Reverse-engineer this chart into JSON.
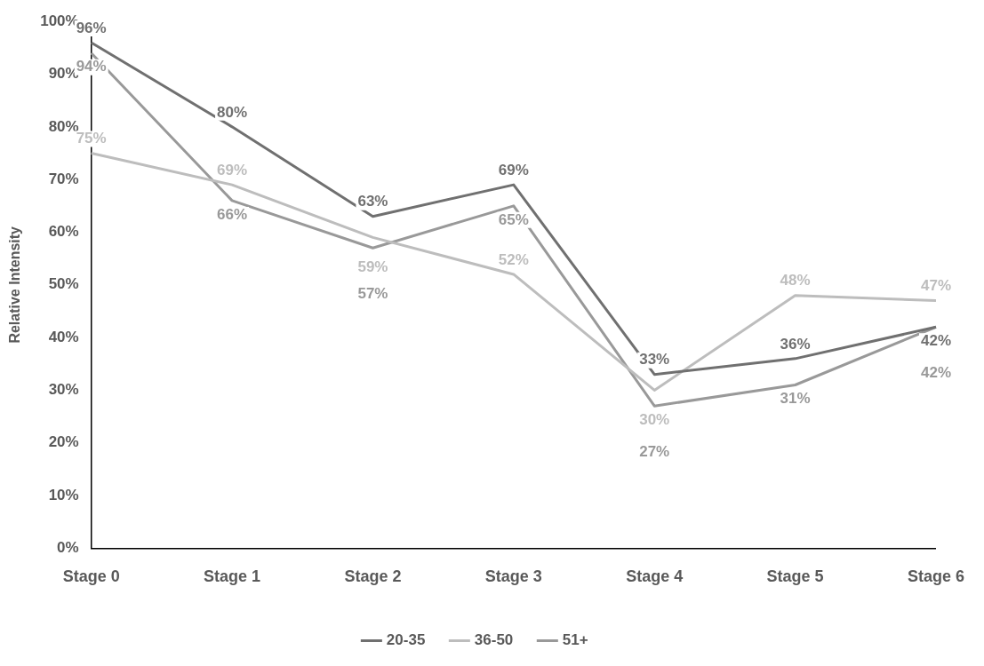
{
  "chart_data": {
    "type": "line",
    "ylabel": "Relative Intensity",
    "categories": [
      "Stage 0",
      "Stage 1",
      "Stage 2",
      "Stage 3",
      "Stage 4",
      "Stage 5",
      "Stage 6"
    ],
    "series": [
      {
        "name": "20-35",
        "color": "#707070",
        "values": [
          96,
          80,
          63,
          69,
          33,
          36,
          42
        ]
      },
      {
        "name": "36-50",
        "color": "#bdbdbd",
        "values": [
          75,
          69,
          59,
          52,
          30,
          48,
          47
        ]
      },
      {
        "name": "51+",
        "color": "#999999",
        "values": [
          94,
          66,
          57,
          65,
          27,
          31,
          42
        ]
      }
    ],
    "ylim": [
      0,
      100
    ],
    "yticks": [
      {
        "value": 0,
        "label": "0%"
      },
      {
        "value": 10,
        "label": "10%"
      },
      {
        "value": 20,
        "label": "20%"
      },
      {
        "value": 30,
        "label": "30%"
      },
      {
        "value": 40,
        "label": "40%"
      },
      {
        "value": 50,
        "label": "50%"
      },
      {
        "value": 60,
        "label": "60%"
      },
      {
        "value": 70,
        "label": "70%"
      },
      {
        "value": 80,
        "label": "80%"
      },
      {
        "value": 90,
        "label": "90%"
      },
      {
        "value": 100,
        "label": "100%"
      }
    ],
    "grid": false,
    "legend": "bottom",
    "line_style": "solid",
    "value_labels": [
      [
        "96%",
        "80%",
        "63%",
        "69%",
        "33%",
        "36%",
        "42%"
      ],
      [
        "75%",
        "69%",
        "59%",
        "52%",
        "30%",
        "48%",
        "47%"
      ],
      [
        "94%",
        "66%",
        "57%",
        "65%",
        "27%",
        "31%",
        "42%"
      ]
    ]
  }
}
